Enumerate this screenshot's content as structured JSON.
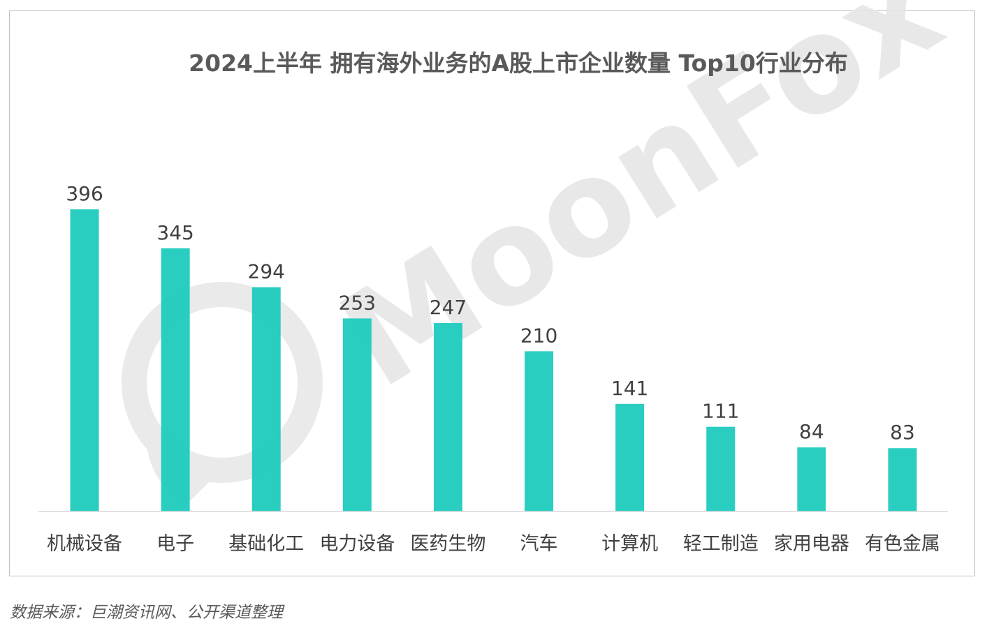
{
  "chart_data": {
    "type": "bar",
    "title": "2024上半年 拥有海外业务的A股上市企业数量 Top10行业分布",
    "categories": [
      "机械设备",
      "电子",
      "基础化工",
      "电力设备",
      "医药生物",
      "汽车",
      "计算机",
      "轻工制造",
      "家用电器",
      "有色金属"
    ],
    "values": [
      396,
      345,
      294,
      253,
      247,
      210,
      141,
      111,
      84,
      83
    ],
    "data_labels": [
      "396",
      "345",
      "294",
      "253",
      "247",
      "210",
      "141",
      "111",
      "84",
      "83"
    ],
    "xlabel": "",
    "ylabel": "",
    "ylim": [
      0,
      396
    ],
    "grid": false,
    "legend": "none",
    "colors": {
      "bar": "#1fcbbd",
      "title": "#595959",
      "label": "#404040",
      "axis": "#d9d9d9",
      "watermark": "#e6e6e6"
    }
  },
  "watermark": {
    "text": "MoonFox"
  },
  "source": "数据来源：巨潮资讯网、公开渠道整理"
}
